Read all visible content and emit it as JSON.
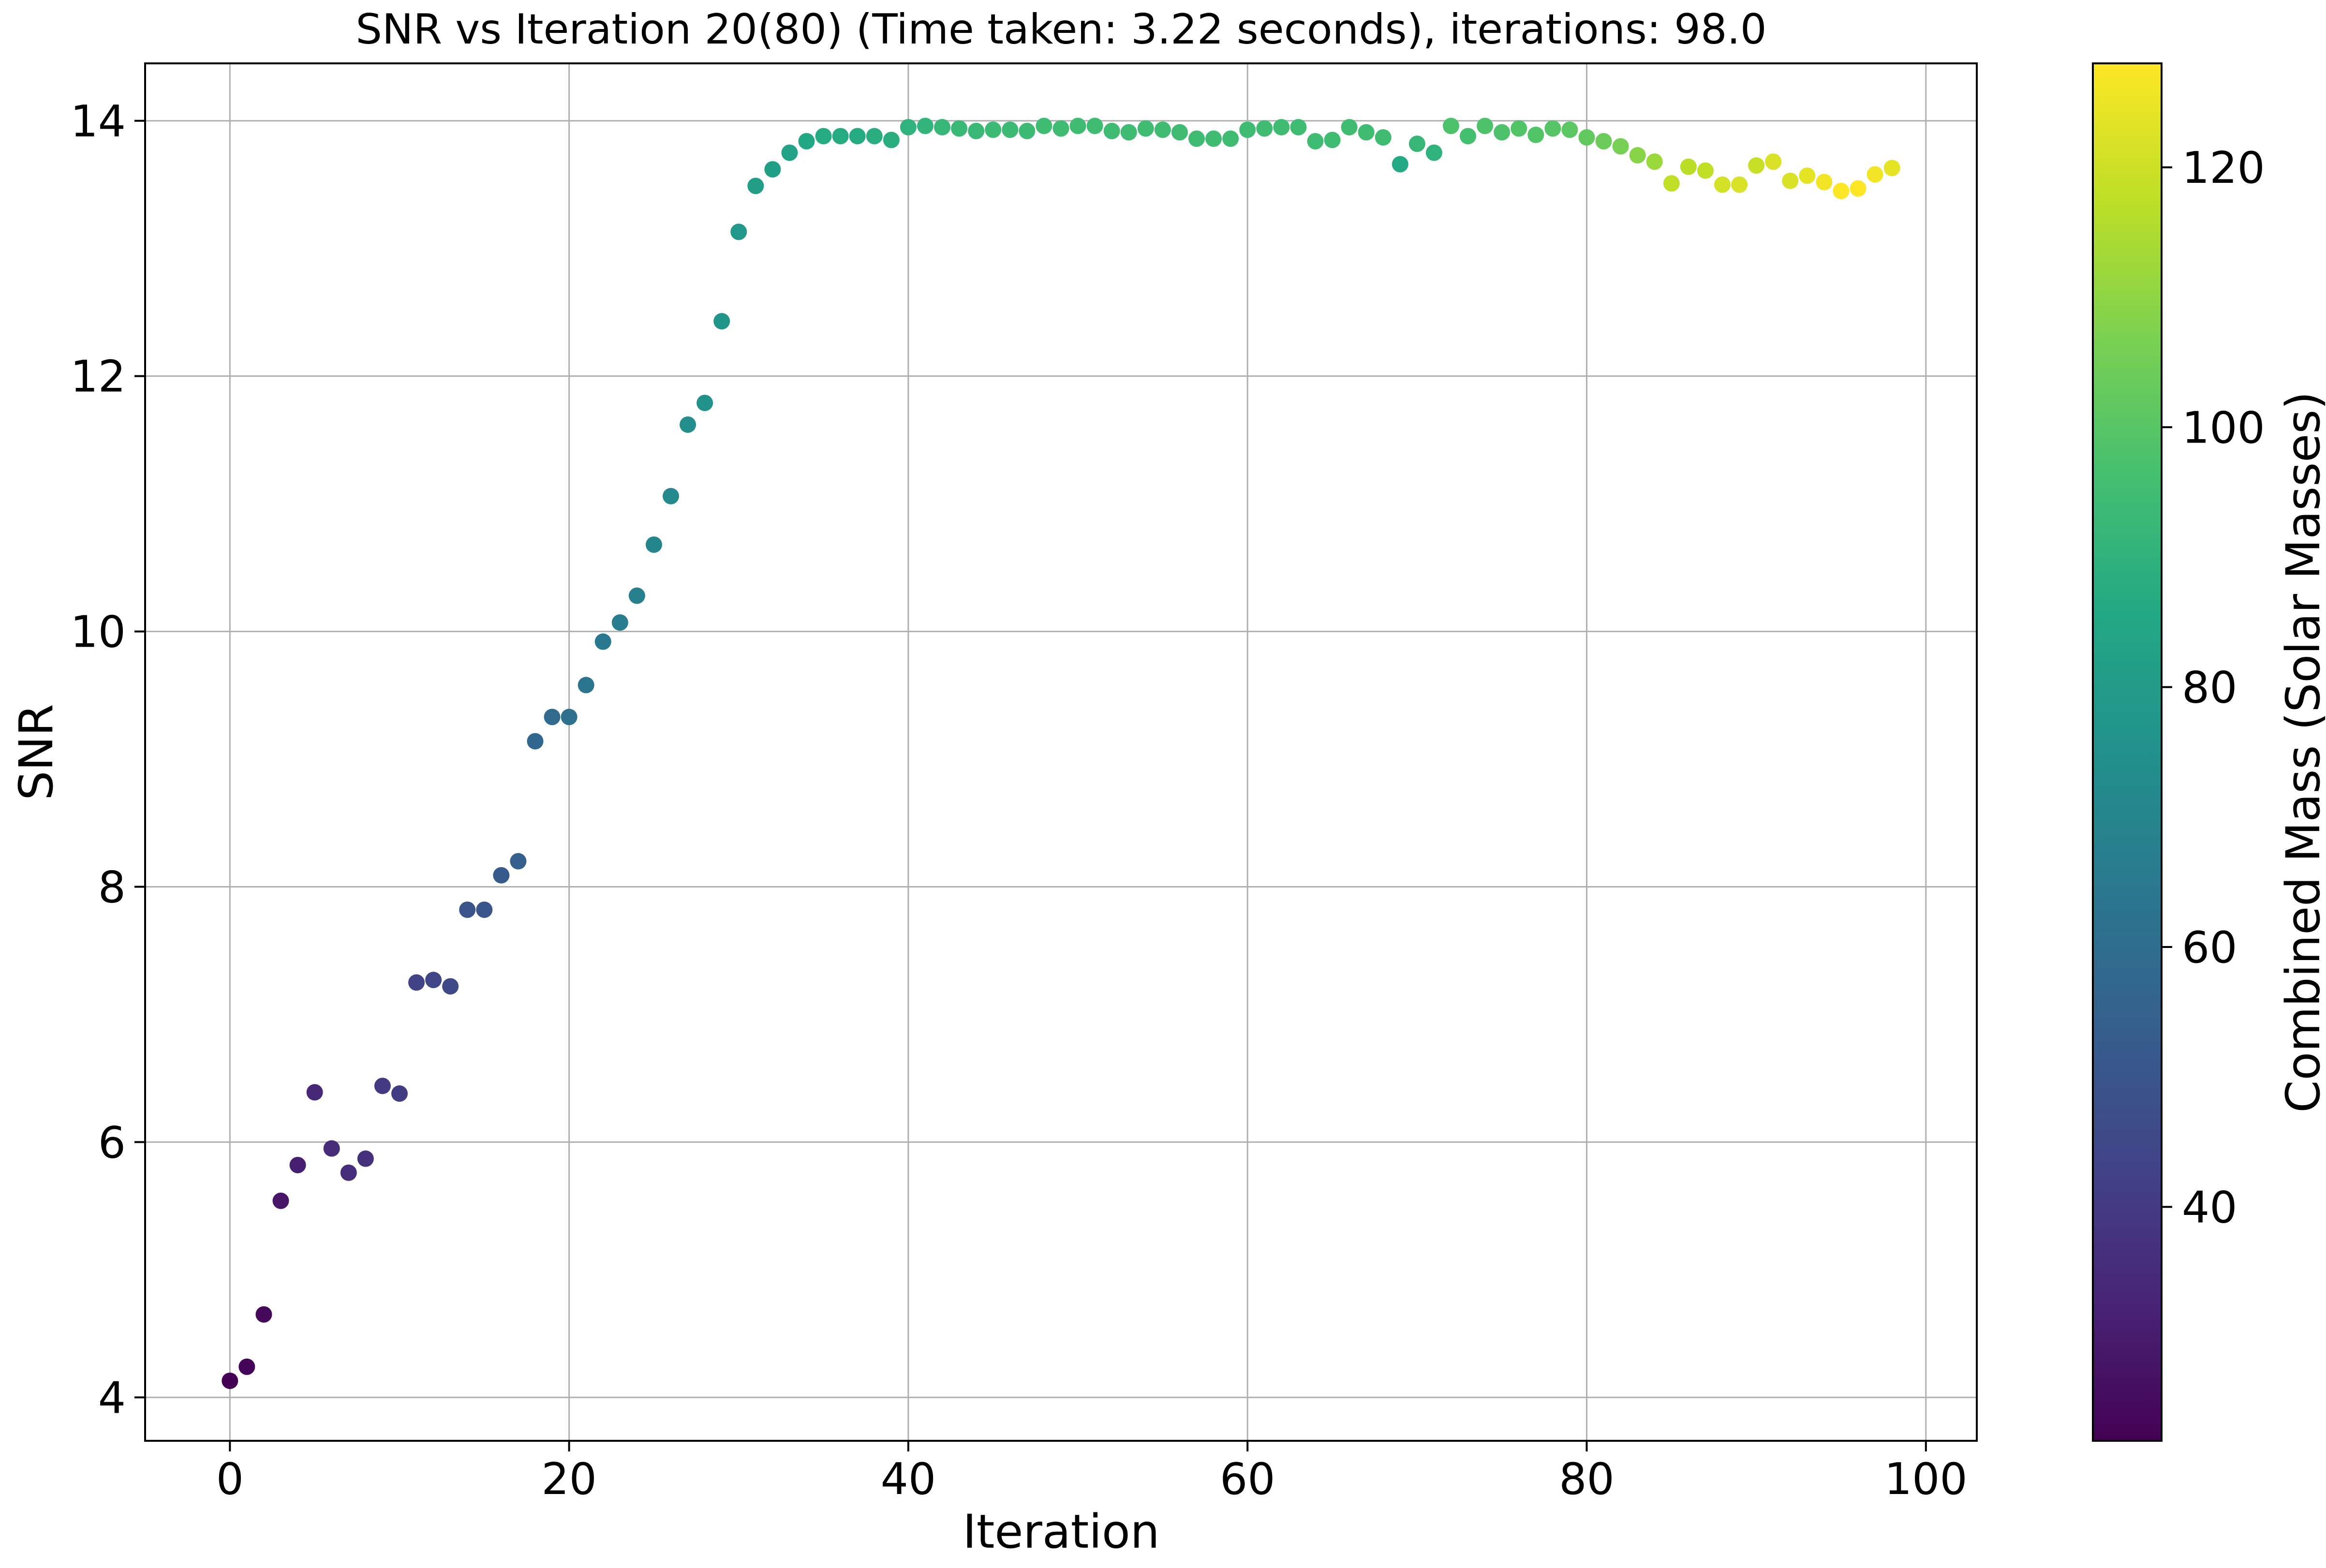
{
  "chart_data": {
    "type": "scatter",
    "title": "SNR vs Iteration 20(80) (Time taken: 3.22 seconds), iterations: 98.0",
    "xlabel": "Iteration",
    "ylabel": "SNR",
    "xlim": [
      -5,
      103
    ],
    "ylim": [
      3.66,
      14.45
    ],
    "xticks": [
      0,
      20,
      40,
      60,
      80,
      100
    ],
    "yticks": [
      4,
      6,
      8,
      10,
      12,
      14
    ],
    "grid": true,
    "colorbar": {
      "label": "Combined Mass (Solar Masses)",
      "colormap": "viridis",
      "range": [
        22,
        128
      ],
      "ticks": [
        40,
        60,
        80,
        100,
        120
      ]
    },
    "x": [
      0,
      1,
      2,
      3,
      4,
      5,
      6,
      7,
      8,
      9,
      10,
      11,
      12,
      13,
      14,
      15,
      16,
      17,
      18,
      19,
      20,
      21,
      22,
      23,
      24,
      25,
      26,
      27,
      28,
      29,
      30,
      31,
      32,
      33,
      34,
      35,
      36,
      37,
      38,
      39,
      40,
      41,
      42,
      43,
      44,
      45,
      46,
      47,
      48,
      49,
      50,
      51,
      52,
      53,
      54,
      55,
      56,
      57,
      58,
      59,
      60,
      61,
      62,
      63,
      64,
      65,
      66,
      67,
      68,
      69,
      70,
      71,
      72,
      73,
      74,
      75,
      76,
      77,
      78,
      79,
      80,
      81,
      82,
      83,
      84,
      85,
      86,
      87,
      88,
      89,
      90,
      91,
      92,
      93,
      94,
      95,
      96,
      97,
      98
    ],
    "y": [
      4.13,
      4.24,
      4.65,
      5.54,
      5.82,
      6.39,
      5.95,
      5.76,
      5.87,
      6.44,
      6.38,
      7.25,
      7.27,
      7.22,
      7.82,
      7.82,
      8.09,
      8.2,
      9.14,
      9.33,
      9.33,
      9.58,
      9.92,
      10.07,
      10.28,
      10.68,
      11.06,
      11.62,
      11.79,
      12.43,
      13.13,
      13.49,
      13.62,
      13.75,
      13.84,
      13.88,
      13.88,
      13.88,
      13.88,
      13.85,
      13.95,
      13.96,
      13.95,
      13.94,
      13.92,
      13.93,
      13.93,
      13.92,
      13.96,
      13.94,
      13.96,
      13.96,
      13.92,
      13.91,
      13.94,
      13.93,
      13.91,
      13.86,
      13.86,
      13.86,
      13.93,
      13.94,
      13.95,
      13.95,
      13.84,
      13.85,
      13.95,
      13.91,
      13.87,
      13.66,
      13.82,
      13.75,
      13.96,
      13.88,
      13.96,
      13.91,
      13.94,
      13.89,
      13.94,
      13.93,
      13.87,
      13.84,
      13.8,
      13.73,
      13.68,
      13.51,
      13.64,
      13.61,
      13.5,
      13.5,
      13.65,
      13.68,
      13.53,
      13.57,
      13.52,
      13.45,
      13.47,
      13.58,
      13.63
    ],
    "mass": [
      22,
      23,
      24,
      28,
      31,
      34,
      35,
      36,
      37,
      40,
      41,
      43,
      44,
      45,
      49,
      50,
      52,
      54,
      57,
      59,
      61,
      63,
      65,
      67,
      68,
      70,
      72,
      74,
      76,
      77,
      78,
      81,
      82,
      83,
      85,
      87,
      87,
      87,
      88,
      88,
      90,
      91,
      92,
      93,
      93,
      94,
      94,
      94,
      95,
      95,
      95,
      95,
      95,
      95,
      95,
      95,
      95,
      95,
      95,
      95,
      95,
      95,
      95,
      95,
      95,
      95,
      95,
      95,
      95,
      86,
      92,
      90,
      98,
      96,
      98,
      98,
      99,
      99,
      100,
      101,
      102,
      104,
      106,
      109,
      112,
      118,
      117,
      118,
      121,
      122,
      119,
      122,
      122,
      124,
      126,
      128,
      128,
      126,
      124
    ]
  }
}
